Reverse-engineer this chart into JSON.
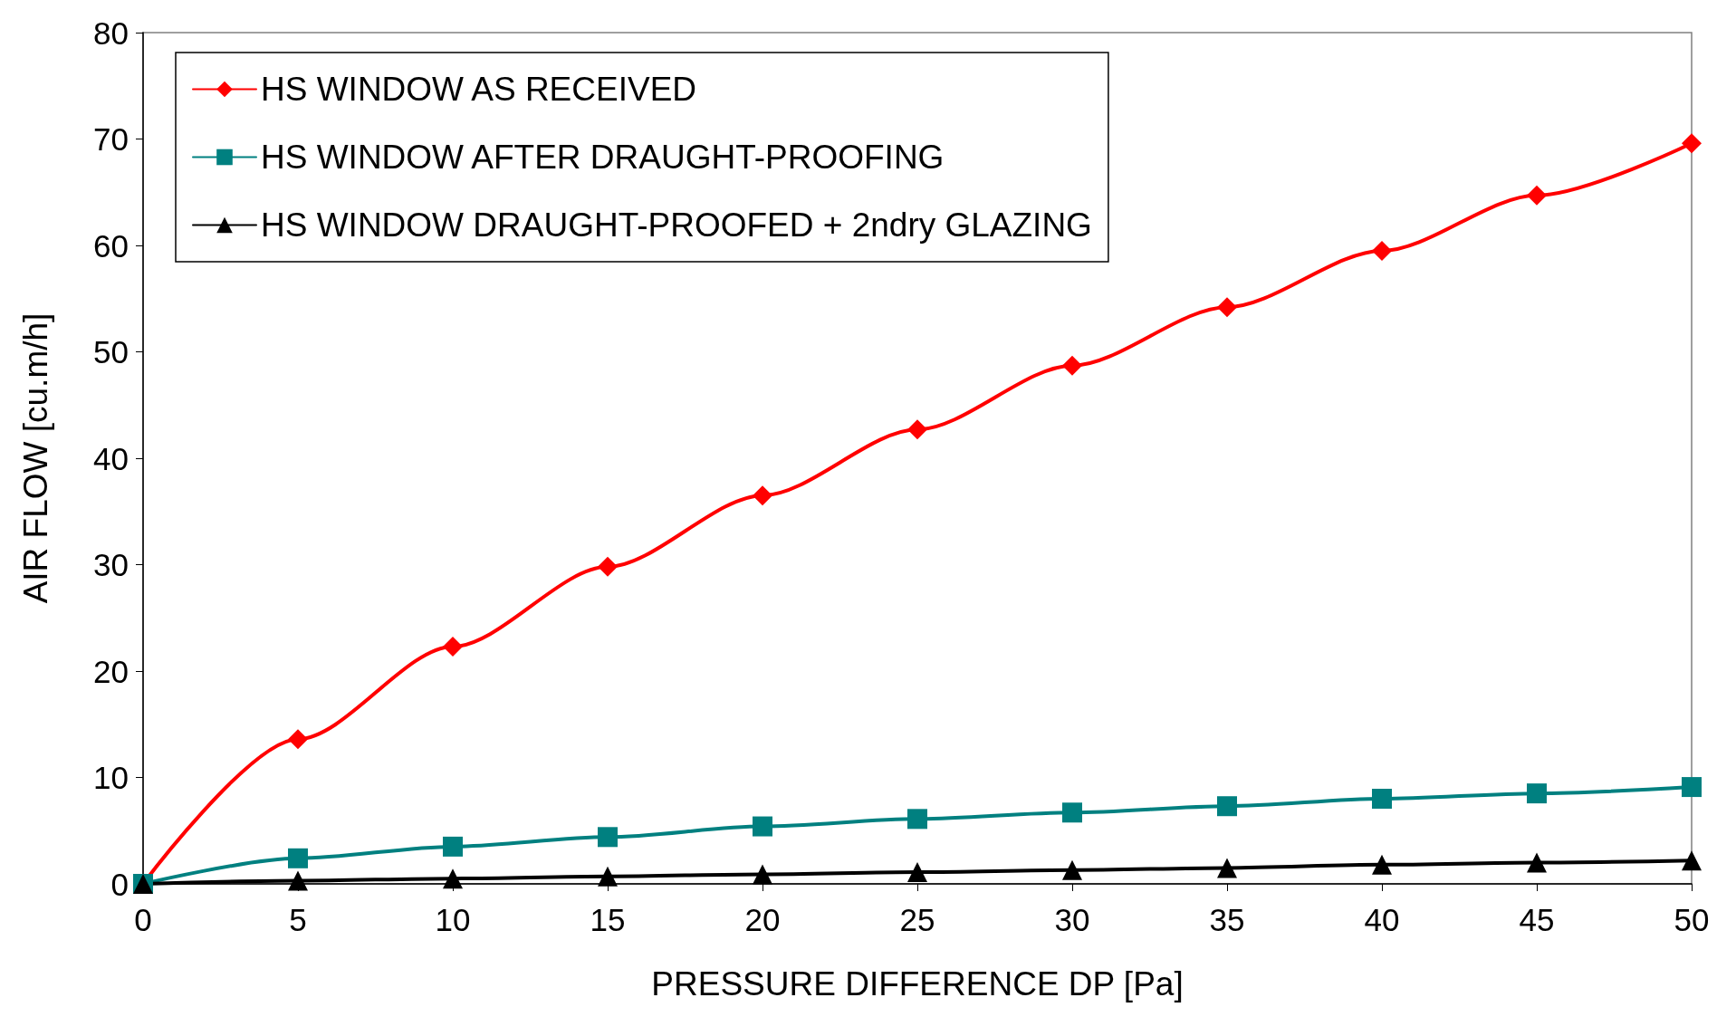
{
  "chart_data": {
    "type": "line",
    "xlabel": "PRESSURE DIFFERENCE DP [Pa]",
    "ylabel": "AIR FLOW [cu.m/h]",
    "x": [
      0,
      5,
      10,
      15,
      20,
      25,
      30,
      35,
      40,
      45,
      50
    ],
    "series": [
      {
        "name": "HS WINDOW AS RECEIVED",
        "color": "#ff0000",
        "marker": "diamond",
        "values": [
          0,
          13.6,
          22.3,
          29.8,
          36.5,
          42.7,
          48.7,
          54.2,
          59.5,
          64.7,
          69.6
        ]
      },
      {
        "name": "HS WINDOW AFTER DRAUGHT-PROOFING",
        "color": "#008080",
        "marker": "square",
        "values": [
          0,
          2.4,
          3.5,
          4.4,
          5.4,
          6.1,
          6.7,
          7.3,
          8.0,
          8.5,
          9.1
        ]
      },
      {
        "name": "HS WINDOW DRAUGHT-PROOFED + 2ndry GLAZING",
        "color": "#000000",
        "marker": "triangle",
        "values": [
          0,
          0.3,
          0.5,
          0.7,
          0.9,
          1.1,
          1.3,
          1.5,
          1.8,
          2.0,
          2.2
        ]
      }
    ],
    "xlim": [
      0,
      50
    ],
    "xticks": [
      0,
      5,
      10,
      15,
      20,
      25,
      30,
      35,
      40,
      45,
      50
    ],
    "ylim": [
      0,
      80
    ],
    "yticks": [
      0,
      10,
      20,
      30,
      40,
      50,
      60,
      70,
      80
    ],
    "grid": false,
    "legend": "top left",
    "line_style": "solid"
  }
}
